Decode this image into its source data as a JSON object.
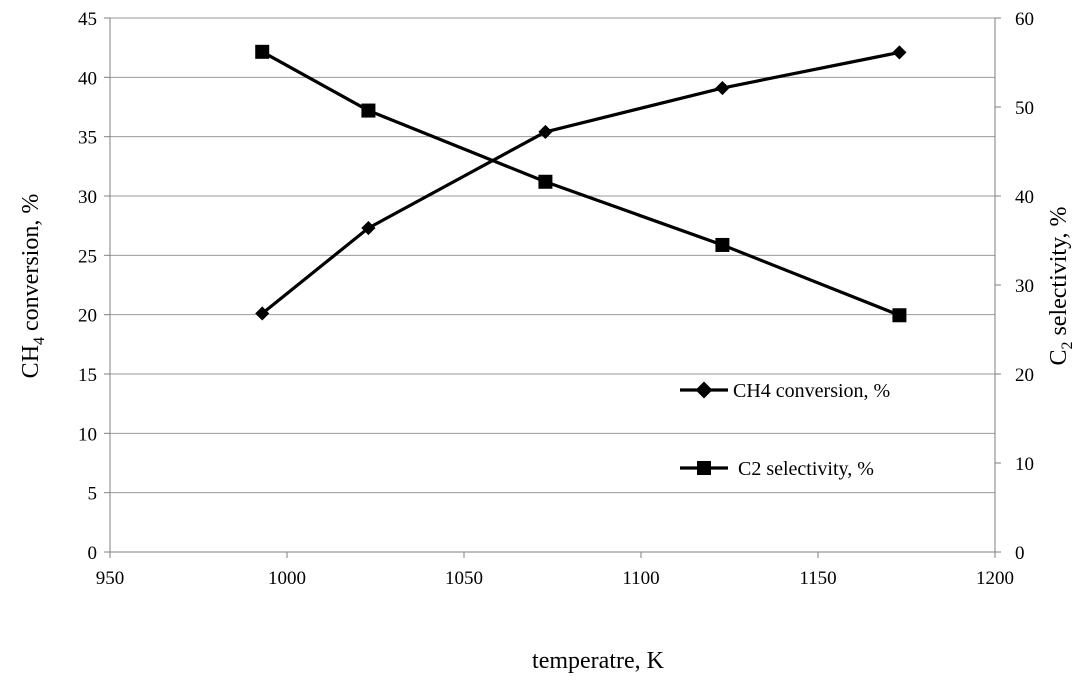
{
  "chart_data": {
    "type": "line",
    "xlabel": "temperatre, K",
    "ylabel_left": {
      "main": "CH",
      "sub": "4",
      "rest": " conversion, %"
    },
    "ylabel_right": {
      "main": "C",
      "sub": "2",
      "rest": " selectivity, %"
    },
    "xlim": [
      950,
      1200
    ],
    "xticks": [
      950,
      1000,
      1050,
      1100,
      1150,
      1200
    ],
    "ylim_left": [
      0,
      45
    ],
    "yticks_left": [
      0,
      5,
      10,
      15,
      20,
      25,
      30,
      35,
      40,
      45
    ],
    "ylim_right": [
      0,
      60
    ],
    "yticks_right": [
      0,
      10,
      20,
      30,
      40,
      50,
      60
    ],
    "grid": true,
    "legend_position": "lower-right",
    "series": [
      {
        "name": "CH4 conversion, %",
        "axis": "left",
        "marker": "diamond",
        "color": "#000000",
        "x": [
          993,
          1023,
          1073,
          1123,
          1173
        ],
        "y": [
          20.1,
          27.3,
          35.4,
          39.1,
          42.1
        ]
      },
      {
        "name": "C2 selectivity, %",
        "axis": "right",
        "marker": "square",
        "color": "#000000",
        "x": [
          993,
          1023,
          1073,
          1123,
          1173
        ],
        "y": [
          56.2,
          49.6,
          41.6,
          34.5,
          26.6
        ]
      }
    ]
  }
}
